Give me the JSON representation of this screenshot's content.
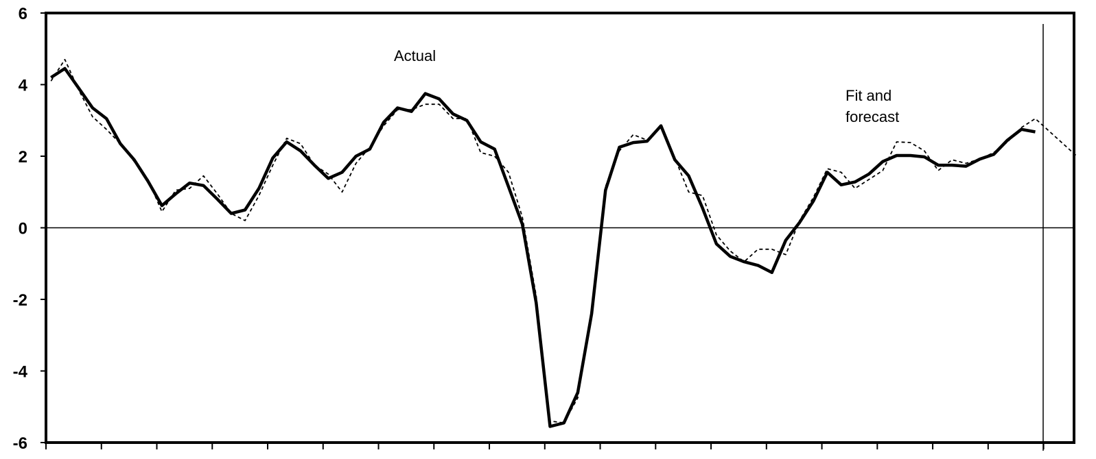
{
  "chart_data": {
    "type": "line",
    "title": "",
    "xlabel": "",
    "ylabel": "",
    "ylim": [
      -6,
      6
    ],
    "yticks": [
      6,
      4,
      2,
      0,
      -2,
      -4,
      -6
    ],
    "ytick_labels": [
      "6",
      "4",
      "2",
      "0",
      "-2",
      "-4",
      "-6"
    ],
    "x_tick_count": 19,
    "grid": false,
    "legend": "none",
    "annotations": [
      {
        "text": "Actual"
      },
      {
        "text": "Fit and\nforecast"
      }
    ],
    "series": [
      {
        "style": "solid-thick",
        "color": "#000000",
        "x": [
          0.18,
          0.68,
          1.18,
          1.68,
          2.18,
          2.68,
          3.18,
          3.68,
          4.18,
          4.68,
          5.18,
          5.68,
          6.18,
          6.68,
          7.18,
          7.68,
          8.18,
          8.68,
          9.18,
          9.68,
          10.18,
          10.68,
          11.18,
          11.68,
          12.18,
          12.68,
          13.18,
          13.68,
          14.18,
          14.68,
          15.18,
          15.68,
          16.18,
          16.68,
          17.18,
          17.68,
          18.18,
          18.68,
          19.18,
          19.68,
          20.18,
          20.68,
          21.18,
          21.68,
          22.18,
          22.68,
          23.18,
          23.68,
          24.18,
          24.68,
          25.18,
          25.68,
          26.18,
          26.68,
          27.18,
          27.68,
          28.18,
          28.68,
          29.18,
          29.68,
          30.18,
          30.68,
          31.18,
          31.68,
          32.18,
          32.68,
          33.18,
          33.68,
          34.18,
          34.68,
          35.18,
          35.68
        ],
        "values": [
          4.2,
          4.45,
          3.9,
          3.35,
          3.05,
          2.35,
          1.9,
          1.3,
          0.62,
          0.95,
          1.25,
          1.18,
          0.8,
          0.4,
          0.5,
          1.1,
          1.95,
          2.4,
          2.15,
          1.75,
          1.38,
          1.55,
          2.0,
          2.2,
          2.95,
          3.35,
          3.25,
          3.75,
          3.6,
          3.18,
          3.0,
          2.4,
          2.2,
          1.15,
          0.1,
          -2.1,
          -5.55,
          -5.45,
          -4.6,
          -2.4,
          1.05,
          2.25,
          2.38,
          2.42,
          2.85,
          1.9,
          1.45,
          0.55,
          -0.45,
          -0.8,
          -0.95,
          -1.05,
          -1.25,
          -0.35,
          0.15,
          0.75,
          1.55,
          1.2,
          1.28,
          1.5,
          1.85,
          2.02,
          2.02,
          1.98,
          1.75,
          1.75,
          1.72,
          1.92,
          2.05,
          2.45,
          2.75,
          2.68
        ]
      },
      {
        "style": "dashed-thin",
        "color": "#000000",
        "x": [
          0.18,
          0.68,
          1.18,
          1.68,
          2.18,
          2.68,
          3.18,
          3.68,
          4.18,
          4.68,
          5.18,
          5.68,
          6.18,
          6.68,
          7.18,
          7.68,
          8.18,
          8.68,
          9.18,
          9.68,
          10.18,
          10.68,
          11.18,
          11.68,
          12.18,
          12.68,
          13.18,
          13.68,
          14.18,
          14.68,
          15.18,
          15.68,
          16.18,
          16.68,
          17.18,
          17.68,
          18.18,
          18.68,
          19.18,
          19.68,
          20.18,
          20.68,
          21.18,
          21.68,
          22.18,
          22.68,
          23.18,
          23.68,
          24.18,
          24.68,
          25.18,
          25.68,
          26.18,
          26.68,
          27.18,
          27.68,
          28.18,
          28.68,
          29.18,
          29.68,
          30.18,
          30.68,
          31.18,
          31.68,
          32.18,
          32.68,
          33.18,
          33.68,
          34.18,
          34.68,
          35.18,
          35.68,
          36.18,
          36.68,
          37.18
        ],
        "values": [
          4.1,
          4.7,
          3.85,
          3.1,
          2.75,
          2.35,
          1.85,
          1.35,
          0.45,
          1.05,
          1.1,
          1.45,
          0.95,
          0.4,
          0.2,
          0.9,
          1.75,
          2.5,
          2.35,
          1.75,
          1.5,
          1.0,
          1.8,
          2.25,
          2.85,
          3.3,
          3.3,
          3.45,
          3.45,
          3.05,
          3.05,
          2.1,
          2.0,
          1.55,
          0.3,
          -1.9,
          -5.4,
          -5.45,
          -4.75,
          -2.4,
          1.15,
          2.15,
          2.6,
          2.45,
          2.8,
          1.95,
          1.0,
          0.9,
          -0.2,
          -0.65,
          -0.95,
          -0.6,
          -0.6,
          -0.75,
          0.2,
          0.85,
          1.65,
          1.55,
          1.1,
          1.35,
          1.6,
          2.4,
          2.38,
          2.15,
          1.6,
          1.9,
          1.8,
          1.92,
          2.1,
          2.4,
          2.8,
          3.05,
          2.7,
          2.35,
          2.0
        ]
      }
    ]
  }
}
